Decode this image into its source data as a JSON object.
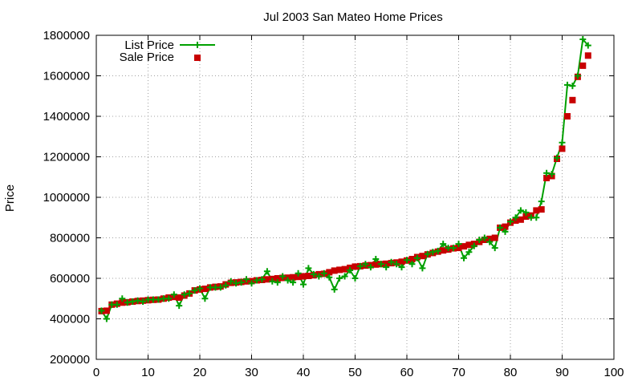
{
  "chart_data": {
    "type": "line",
    "title": "Jul 2003 San Mateo Home Prices",
    "xlabel": "",
    "ylabel": "Price",
    "xlim": [
      0,
      100
    ],
    "ylim": [
      200000,
      1800000
    ],
    "xticks": [
      0,
      10,
      20,
      30,
      40,
      50,
      60,
      70,
      80,
      90,
      100
    ],
    "yticks": [
      200000,
      400000,
      600000,
      800000,
      1000000,
      1200000,
      1400000,
      1600000,
      1800000
    ],
    "grid": true,
    "legend_position": "top-left",
    "x": [
      1,
      2,
      3,
      4,
      5,
      6,
      7,
      8,
      9,
      10,
      11,
      12,
      13,
      14,
      15,
      16,
      17,
      18,
      19,
      20,
      21,
      22,
      23,
      24,
      25,
      26,
      27,
      28,
      29,
      30,
      31,
      32,
      33,
      34,
      35,
      36,
      37,
      38,
      39,
      40,
      41,
      42,
      43,
      44,
      45,
      46,
      47,
      48,
      49,
      50,
      51,
      52,
      53,
      54,
      55,
      56,
      57,
      58,
      59,
      60,
      61,
      62,
      63,
      64,
      65,
      66,
      67,
      68,
      69,
      70,
      71,
      72,
      73,
      74,
      75,
      76,
      77,
      78,
      79,
      80,
      81,
      82,
      83,
      84,
      85,
      86,
      87,
      88,
      89,
      90,
      91,
      92,
      93,
      94,
      95
    ],
    "series": [
      {
        "name": "List Price",
        "style": "linespoints",
        "color": "#00a000",
        "values": [
          440000,
          400000,
          470000,
          470000,
          500000,
          480000,
          485000,
          490000,
          485000,
          495000,
          495000,
          495000,
          500000,
          500000,
          520000,
          465000,
          520000,
          525000,
          540000,
          550000,
          500000,
          555000,
          555000,
          555000,
          565000,
          585000,
          575000,
          580000,
          595000,
          575000,
          590000,
          595000,
          635000,
          585000,
          580000,
          610000,
          590000,
          580000,
          625000,
          570000,
          650000,
          620000,
          610000,
          625000,
          605000,
          545000,
          600000,
          610000,
          640000,
          600000,
          660000,
          670000,
          655000,
          695000,
          670000,
          655000,
          680000,
          670000,
          655000,
          690000,
          670000,
          700000,
          650000,
          720000,
          730000,
          735000,
          770000,
          750000,
          750000,
          770000,
          700000,
          730000,
          760000,
          790000,
          800000,
          780000,
          750000,
          850000,
          830000,
          880000,
          900000,
          935000,
          925000,
          900000,
          900000,
          980000,
          1120000,
          1115000,
          1195000,
          1270000,
          1555000,
          1550000,
          1600000,
          1780000,
          1750000
        ]
      },
      {
        "name": "Sale Price",
        "style": "points",
        "color": "#c80000",
        "values": [
          438000,
          440000,
          470000,
          475000,
          480000,
          482000,
          485000,
          488000,
          490000,
          492000,
          494000,
          495000,
          500000,
          505000,
          508000,
          505000,
          515000,
          525000,
          540000,
          545000,
          548000,
          555000,
          558000,
          560000,
          570000,
          578000,
          580000,
          582000,
          585000,
          586000,
          590000,
          592000,
          595000,
          597000,
          600000,
          602000,
          603000,
          605000,
          607000,
          610000,
          612000,
          615000,
          620000,
          622000,
          630000,
          638000,
          642000,
          645000,
          652000,
          658000,
          660000,
          663000,
          665000,
          668000,
          670000,
          672000,
          675000,
          678000,
          682000,
          688000,
          695000,
          705000,
          710000,
          718000,
          725000,
          732000,
          738000,
          742000,
          748000,
          750000,
          758000,
          765000,
          770000,
          780000,
          790000,
          795000,
          800000,
          850000,
          855000,
          875000,
          885000,
          890000,
          905000,
          910000,
          935000,
          940000,
          1095000,
          1105000,
          1190000,
          1240000,
          1400000,
          1480000,
          1595000,
          1650000,
          1700000
        ]
      }
    ]
  }
}
